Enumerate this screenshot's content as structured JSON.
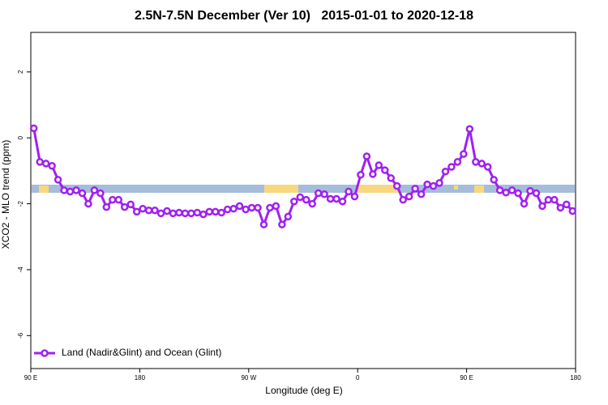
{
  "chart_data": {
    "type": "line",
    "title": "2.5N-7.5N December (Ver 10)   2015-01-01 to 2020-12-18",
    "xlabel": "Longitude (deg E)",
    "ylabel": "XCO2 - MLO trend (ppm)",
    "x": [
      92.5,
      97.5,
      102.5,
      107.5,
      112.5,
      117.5,
      122.5,
      127.5,
      132.5,
      137.5,
      142.5,
      147.5,
      152.5,
      157.5,
      162.5,
      167.5,
      172.5,
      177.5,
      182.5,
      187.5,
      192.5,
      197.5,
      202.5,
      207.5,
      212.5,
      217.5,
      222.5,
      227.5,
      232.5,
      237.5,
      242.5,
      247.5,
      252.5,
      257.5,
      262.5,
      267.5,
      272.5,
      277.5,
      282.5,
      287.5,
      292.5,
      297.5,
      302.5,
      307.5,
      312.5,
      317.5,
      322.5,
      327.5,
      332.5,
      337.5,
      342.5,
      347.5,
      352.5,
      357.5,
      362.5,
      367.5,
      372.5,
      377.5,
      382.5,
      387.5,
      392.5,
      397.5,
      402.5,
      407.5,
      412.5,
      417.5,
      422.5,
      427.5,
      432.5,
      437.5,
      442.5,
      447.5,
      452.5,
      457.5,
      462.5,
      467.5,
      472.5,
      477.5,
      482.5,
      487.5,
      492.5,
      497.5,
      502.5,
      507.5,
      512.5,
      517.5,
      522.5,
      527.5,
      532.5,
      537.5
    ],
    "series": [
      {
        "name": "Land (Nadir&Glint) and Ocean (Glint)",
        "color": "#a020f0",
        "values": [
          0.29,
          -0.73,
          -0.78,
          -0.85,
          -1.27,
          -1.59,
          -1.63,
          -1.59,
          -1.68,
          -2.0,
          -1.59,
          -1.68,
          -2.1,
          -1.88,
          -1.88,
          -2.1,
          -2.02,
          -2.24,
          -2.15,
          -2.2,
          -2.2,
          -2.29,
          -2.22,
          -2.29,
          -2.27,
          -2.29,
          -2.29,
          -2.27,
          -2.32,
          -2.24,
          -2.24,
          -2.27,
          -2.17,
          -2.15,
          -2.07,
          -2.17,
          -2.12,
          -2.12,
          -2.63,
          -2.12,
          -2.07,
          -2.63,
          -2.39,
          -1.93,
          -1.8,
          -1.88,
          -2.0,
          -1.68,
          -1.71,
          -1.85,
          -1.85,
          -1.93,
          -1.63,
          -1.78,
          -1.12,
          -0.56,
          -1.1,
          -0.83,
          -0.98,
          -1.22,
          -1.46,
          -1.88,
          -1.78,
          -1.54,
          -1.71,
          -1.41,
          -1.46,
          -1.37,
          -1.02,
          -0.88,
          -0.73,
          -0.49,
          0.27,
          -0.73,
          -0.78,
          -0.88,
          -1.27,
          -1.59,
          -1.66,
          -1.59,
          -1.68,
          -2.0,
          -1.61,
          -1.68,
          -2.07,
          -1.88,
          -1.88,
          -2.12,
          -2.02,
          -2.22
        ]
      }
    ],
    "xlim": [
      90,
      540
    ],
    "xticks": [
      {
        "value": 90,
        "label": "90 E"
      },
      180,
      {
        "value": 270,
        "label": "90 W"
      },
      {
        "value": 360,
        "label": "0"
      },
      {
        "value": 450,
        "label": "90 E"
      },
      {
        "value": 540,
        "label": "180"
      }
    ],
    "ylim": [
      -7,
      3.2
    ],
    "yticks": [
      2,
      0,
      -2,
      -4,
      -6
    ],
    "legend": "bottom-left"
  }
}
